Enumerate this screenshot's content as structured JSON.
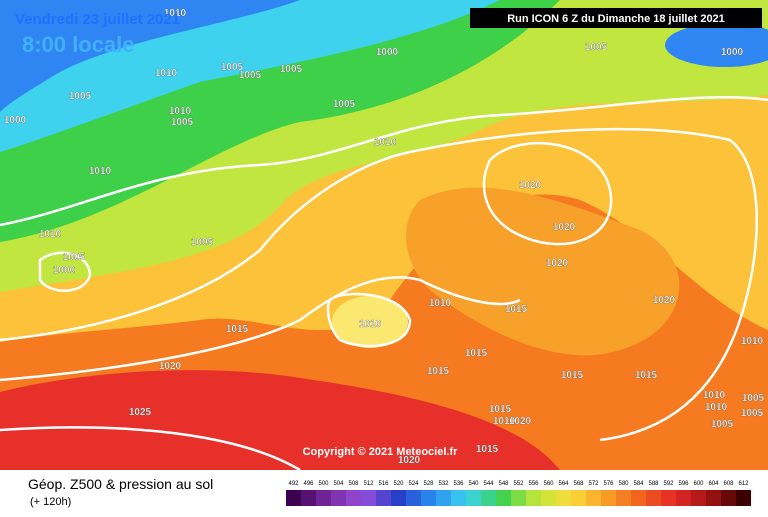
{
  "header": {
    "date": "Vendredi 23 juillet 2021",
    "time": "8:00 locale",
    "run": "Run ICON 6 Z du Dimanche 18 juillet 2021"
  },
  "copyright": "Copyright © 2021 Meteociel.fr",
  "legend": {
    "title": "Géop. Z500 & pression au sol",
    "subtitle": "(+ 120h)",
    "scale": [
      492,
      496,
      500,
      504,
      508,
      512,
      516,
      520,
      524,
      528,
      532,
      536,
      540,
      544,
      548,
      552,
      556,
      560,
      564,
      568,
      572,
      576,
      580,
      584,
      588,
      592,
      596,
      600,
      604,
      608,
      612
    ]
  },
  "isobar_labels": [
    "1010",
    "1000",
    "1005",
    "1000",
    "1010",
    "1005",
    "1005",
    "1005",
    "1005",
    "1000",
    "1010",
    "1005",
    "1005",
    "1010",
    "1010",
    "1020",
    "1010",
    "1005",
    "1000",
    "1005",
    "1020",
    "1020",
    "1010",
    "1015",
    "1010",
    "1020",
    "1015",
    "1010",
    "1015",
    "1020",
    "1015",
    "1015",
    "1015",
    "1025",
    "1010",
    "1010",
    "1005",
    "1005",
    "1015",
    "1010",
    "1020",
    "1005",
    "1015",
    "1020"
  ]
}
